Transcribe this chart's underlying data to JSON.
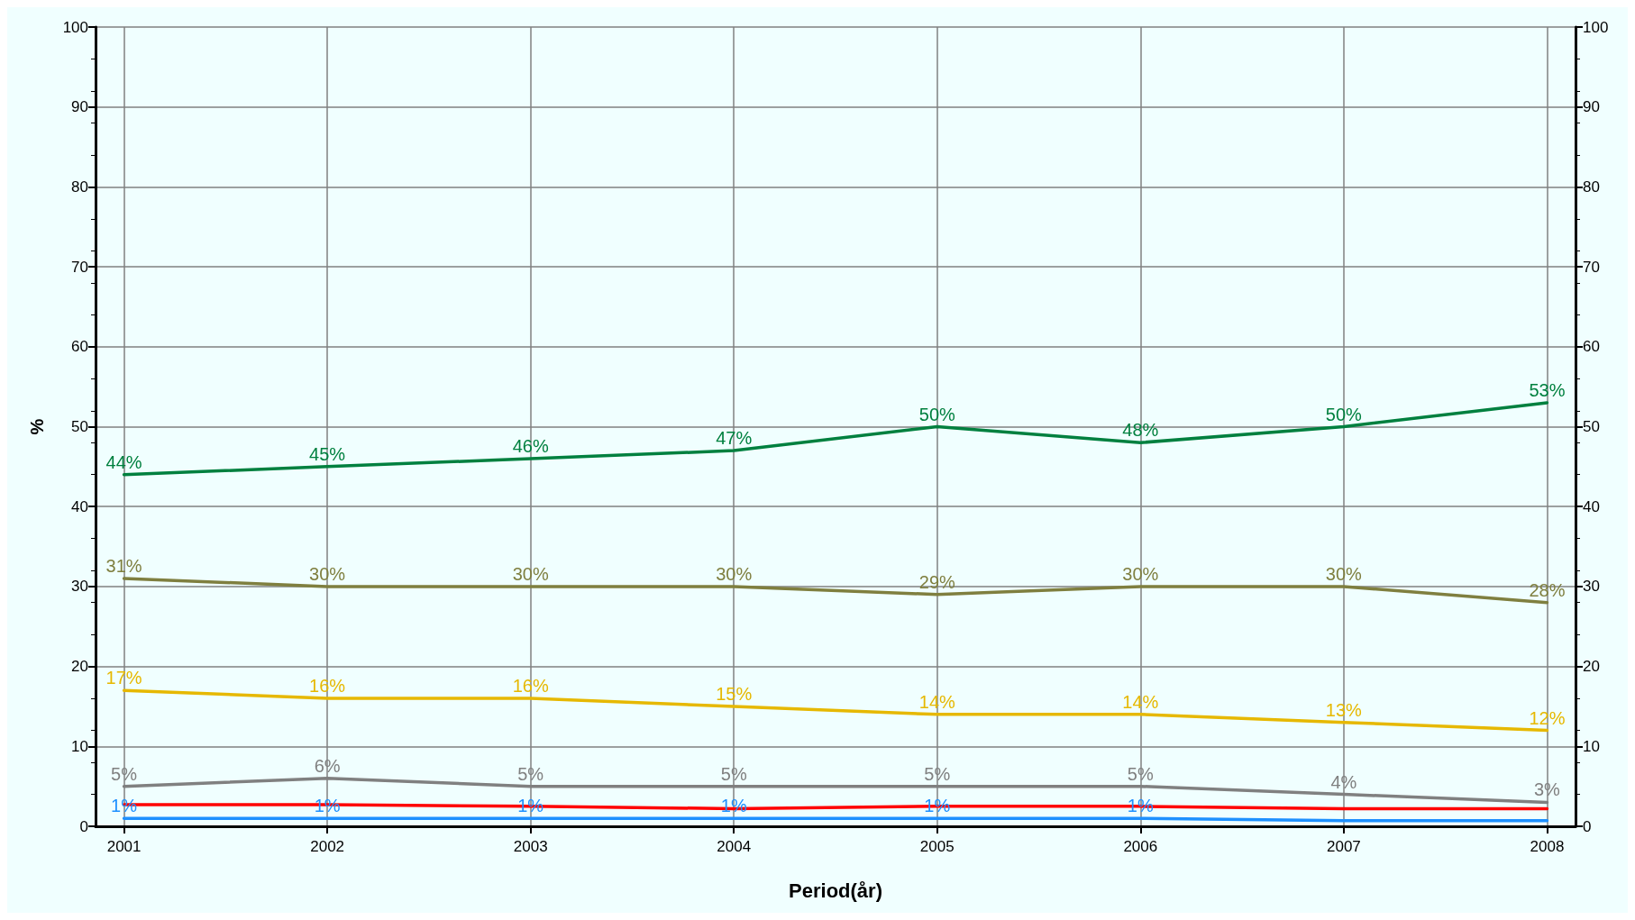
{
  "chart_data": {
    "type": "line",
    "xlabel": "Period(år)",
    "ylabel": "%",
    "x": [
      2001,
      2002,
      2003,
      2004,
      2005,
      2006,
      2007,
      2008
    ],
    "xlim": [
      2000.86,
      2008.14
    ],
    "xticks": [
      2001,
      2002,
      2003,
      2004,
      2005,
      2006,
      2007,
      2008
    ],
    "ylim": [
      0,
      100
    ],
    "yticks": [
      0,
      10,
      20,
      30,
      40,
      50,
      60,
      70,
      80,
      90,
      100
    ],
    "y2lim": [
      0,
      100
    ],
    "y2ticks": [
      0,
      10,
      20,
      30,
      40,
      50,
      60,
      70,
      80,
      90,
      100
    ],
    "grid": true,
    "marker": "none",
    "line_style": "solid",
    "series": [
      {
        "color": "#00803f",
        "values": [
          44,
          45,
          46,
          47,
          50,
          48,
          50,
          53
        ],
        "value_labels": [
          "44%",
          "45%",
          "46%",
          "47%",
          "50%",
          "48%",
          "50%",
          "53%"
        ]
      },
      {
        "color": "#7f7f3f",
        "values": [
          31,
          30,
          30,
          30,
          29,
          30,
          30,
          28
        ],
        "value_labels": [
          "31%",
          "30%",
          "30%",
          "30%",
          "29%",
          "30%",
          "30%",
          "28%"
        ]
      },
      {
        "color": "#e6b800",
        "values": [
          17,
          16,
          16,
          15,
          14,
          14,
          13,
          12
        ],
        "value_labels": [
          "17%",
          "16%",
          "16%",
          "15%",
          "14%",
          "14%",
          "13%",
          "12%"
        ]
      },
      {
        "color": "#808080",
        "values": [
          5,
          6,
          5,
          5,
          5,
          5,
          4,
          3
        ],
        "value_labels": [
          "5%",
          "6%",
          "5%",
          "5%",
          "5%",
          "5%",
          "4%",
          "3%"
        ]
      },
      {
        "color": "#ff0000",
        "values": [
          2.7,
          2.7,
          2.5,
          2.2,
          2.5,
          2.5,
          2.2,
          2.2
        ]
      },
      {
        "color": "#1e90ff",
        "values": [
          1,
          1,
          1,
          1,
          1,
          1,
          0.7,
          0.7
        ],
        "value_labels": [
          "1%",
          "1%",
          "1%",
          "1%",
          "1%",
          "1%",
          null,
          null
        ]
      }
    ]
  }
}
